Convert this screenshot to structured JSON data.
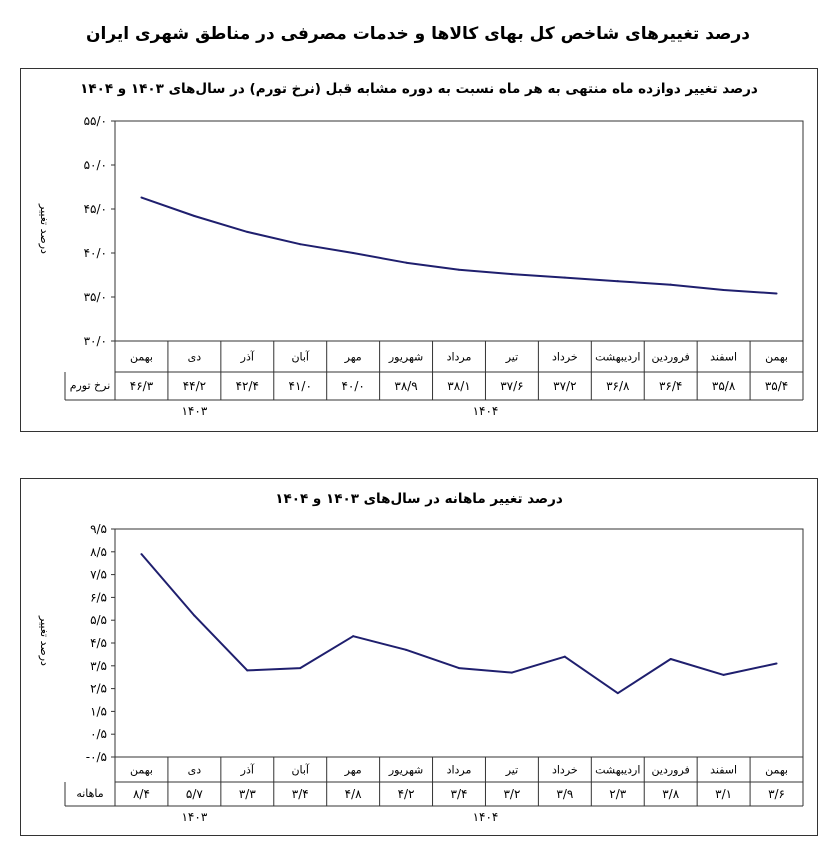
{
  "page": {
    "title": "درصد تغییرهای شاخص کل بهای کالاها و خدمات مصرفی در مناطق شهری ایران"
  },
  "chart_data": [
    {
      "type": "line",
      "title": "درصد تغییر دوازده ماه منتهی به هر ماه نسبت به دوره مشابه قبل (نرخ تورم) در سال‌های ۱۴۰۳ و ۱۴۰۴",
      "xlabel": "",
      "ylabel": "درصد تغییر",
      "ylim": [
        30,
        55
      ],
      "yticks": [
        30,
        35,
        40,
        45,
        50,
        55
      ],
      "ytick_labels": [
        "۳۰/۰",
        "۳۵/۰",
        "۴۰/۰",
        "۴۵/۰",
        "۵۰/۰",
        "۵۵/۰"
      ],
      "grid": false,
      "categories": [
        "بهمن",
        "اسفند",
        "فروردین",
        "اردیبهشت",
        "خرداد",
        "تیر",
        "مرداد",
        "شهریور",
        "مهر",
        "آبان",
        "آذر",
        "دی",
        "بهمن"
      ],
      "series": [
        {
          "name": "نرخ تورم",
          "values": [
            35.4,
            35.8,
            36.4,
            36.8,
            37.2,
            37.6,
            38.1,
            38.9,
            40.0,
            41.0,
            42.4,
            44.2,
            46.3
          ],
          "value_labels": [
            "۳۵/۴",
            "۳۵/۸",
            "۳۶/۴",
            "۳۶/۸",
            "۳۷/۲",
            "۳۷/۶",
            "۳۸/۱",
            "۳۸/۹",
            "۴۰/۰",
            "۴۱/۰",
            "۴۲/۴",
            "۴۴/۲",
            "۴۶/۳"
          ],
          "color": "#1f1f6e"
        }
      ],
      "year_labels": [
        "۱۴۰۳",
        "۱۴۰۴"
      ]
    },
    {
      "type": "line",
      "title": "درصد تغییر ماهانه در سال‌های ۱۴۰۳ و ۱۴۰۴",
      "xlabel": "",
      "ylabel": "درصد تغییر",
      "ylim": [
        -0.5,
        9.5
      ],
      "yticks": [
        -0.5,
        0.5,
        1.5,
        2.5,
        3.5,
        4.5,
        5.5,
        6.5,
        7.5,
        8.5,
        9.5
      ],
      "ytick_labels": [
        "-۰/۵",
        "۰/۵",
        "۱/۵",
        "۲/۵",
        "۳/۵",
        "۴/۵",
        "۵/۵",
        "۶/۵",
        "۷/۵",
        "۸/۵",
        "۹/۵"
      ],
      "grid": false,
      "categories": [
        "بهمن",
        "اسفند",
        "فروردین",
        "اردیبهشت",
        "خرداد",
        "تیر",
        "مرداد",
        "شهریور",
        "مهر",
        "آبان",
        "آذر",
        "دی",
        "بهمن"
      ],
      "series": [
        {
          "name": "ماهانه",
          "values": [
            3.6,
            3.1,
            3.8,
            2.3,
            3.9,
            3.2,
            3.4,
            4.2,
            4.8,
            3.4,
            3.3,
            5.7,
            8.4
          ],
          "value_labels": [
            "۳/۶",
            "۳/۱",
            "۳/۸",
            "۲/۳",
            "۳/۹",
            "۳/۲",
            "۳/۴",
            "۴/۲",
            "۴/۸",
            "۳/۴",
            "۳/۳",
            "۵/۷",
            "۸/۴"
          ],
          "color": "#1f1f6e"
        }
      ],
      "year_labels": [
        "۱۴۰۳",
        "۱۴۰۴"
      ]
    }
  ]
}
